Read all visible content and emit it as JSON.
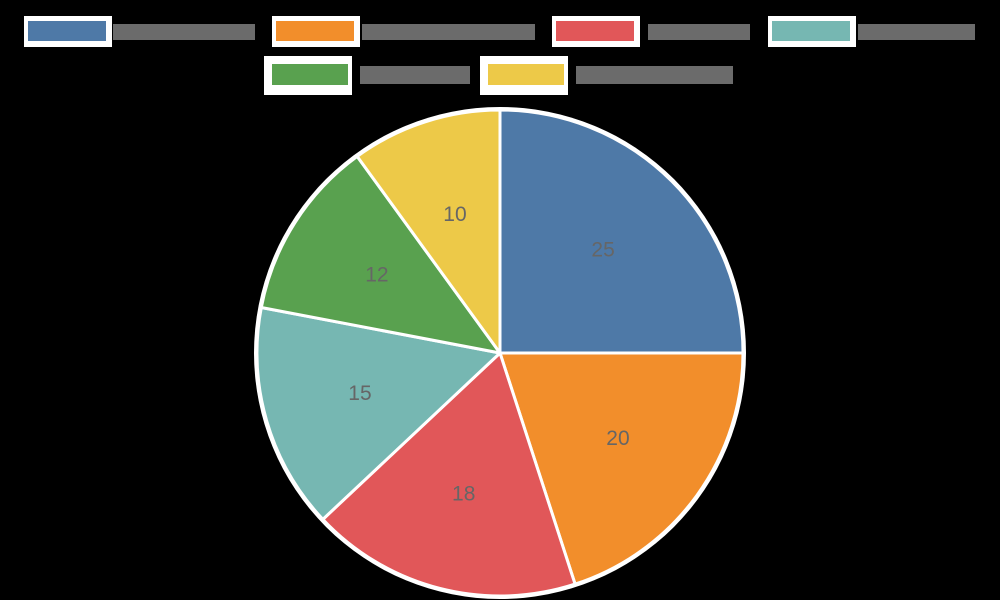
{
  "chart_data": {
    "type": "pie",
    "title": "",
    "legend_position": "top",
    "legend_labels_legible": false,
    "categories": [
      "",
      "",
      "",
      "",
      "",
      ""
    ],
    "values": [
      25,
      20,
      18,
      15,
      12,
      10
    ],
    "value_labels": [
      "25",
      "20",
      "18",
      "15",
      "12",
      "10"
    ],
    "colors": [
      "#4e79a7",
      "#f28e2b",
      "#e15759",
      "#76b7b2",
      "#59a14f",
      "#edc948"
    ],
    "start_angle_deg": 0,
    "direction": "clockwise-from-top",
    "total": 100
  },
  "legend": {
    "items": [
      {
        "color": "#4e79a7",
        "label": ""
      },
      {
        "color": "#f28e2b",
        "label": ""
      },
      {
        "color": "#e15759",
        "label": ""
      },
      {
        "color": "#76b7b2",
        "label": ""
      },
      {
        "color": "#59a14f",
        "label": ""
      },
      {
        "color": "#edc948",
        "label": ""
      }
    ]
  }
}
